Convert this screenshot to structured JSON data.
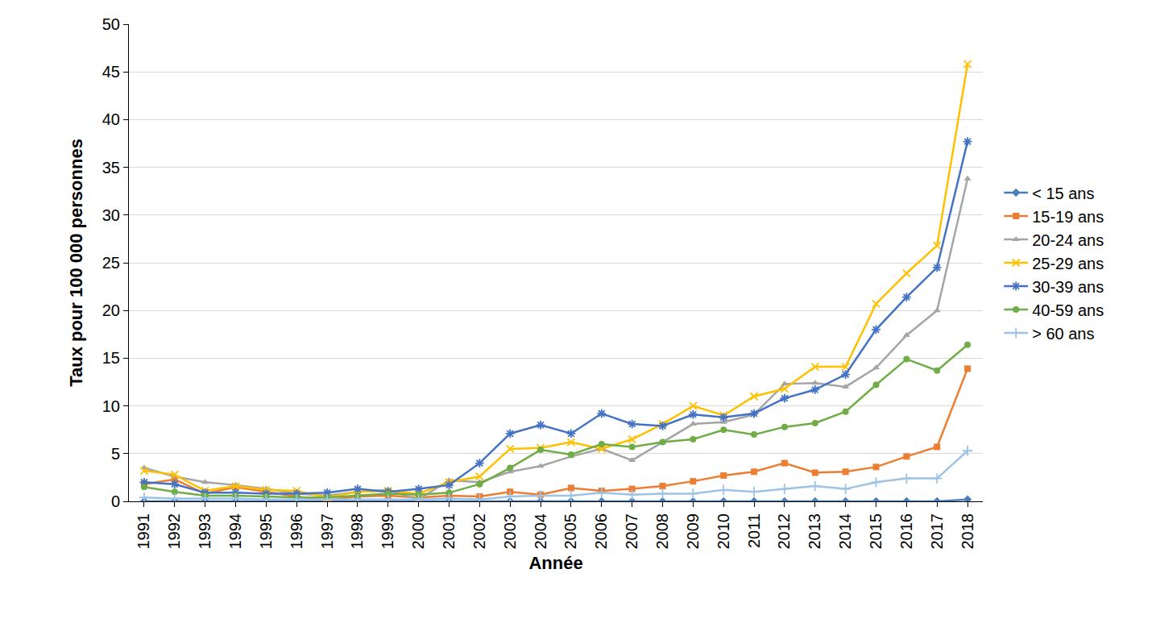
{
  "chart_data": {
    "type": "line",
    "x_label": "Année",
    "y_label": "Taux pour 100 000 personnes",
    "categories": [
      "1991",
      "1992",
      "1993",
      "1994",
      "1995",
      "1996",
      "1997",
      "1998",
      "1999",
      "2000",
      "2001",
      "2002",
      "2003",
      "2004",
      "2005",
      "2006",
      "2007",
      "2008",
      "2009",
      "2010",
      "2011",
      "2012",
      "2013",
      "2014",
      "2015",
      "2016",
      "2017",
      "2018"
    ],
    "series": [
      {
        "name": "< 15 ans",
        "color": "#4a7ebb",
        "marker": "diamond",
        "values": [
          0,
          0,
          0,
          0,
          0,
          0,
          0,
          0,
          0,
          0,
          0,
          0,
          0,
          0,
          0,
          0,
          0,
          0,
          0,
          0,
          0,
          0,
          0,
          0,
          0,
          0,
          0,
          0.2
        ]
      },
      {
        "name": "15-19 ans",
        "color": "#ed7d31",
        "marker": "square",
        "values": [
          1.8,
          2.3,
          0.8,
          1.5,
          1.0,
          0.5,
          0.1,
          0.5,
          0.6,
          0.4,
          0.6,
          0.5,
          1.0,
          0.7,
          1.4,
          1.1,
          1.3,
          1.6,
          2.1,
          2.7,
          3.1,
          4.0,
          3.0,
          3.1,
          3.6,
          4.7,
          5.7,
          13.9
        ]
      },
      {
        "name": "20-24 ans",
        "color": "#a5a5a5",
        "marker": "triangle",
        "values": [
          3.5,
          2.6,
          2.0,
          1.7,
          1.3,
          0.8,
          0.6,
          1.0,
          1.2,
          0.2,
          2.2,
          2.0,
          3.1,
          3.7,
          4.7,
          5.5,
          4.3,
          6.2,
          8.1,
          8.3,
          9.1,
          12.3,
          12.4,
          12.0,
          14.0,
          17.4,
          20.0,
          33.8
        ]
      },
      {
        "name": "25-29 ans",
        "color": "#ffc000",
        "marker": "x",
        "values": [
          3.2,
          2.8,
          1.1,
          1.6,
          1.2,
          1.1,
          0.4,
          1.0,
          1.1,
          0.8,
          2.0,
          2.6,
          5.5,
          5.6,
          6.2,
          5.5,
          6.5,
          8.1,
          10.0,
          9.0,
          11.0,
          11.8,
          14.1,
          14.1,
          20.7,
          23.9,
          26.8,
          45.8
        ]
      },
      {
        "name": "30-39 ans",
        "color": "#4472c4",
        "marker": "asterisk",
        "values": [
          2.0,
          1.8,
          0.9,
          0.9,
          0.8,
          0.8,
          0.9,
          1.3,
          1.0,
          1.3,
          1.7,
          4.0,
          7.1,
          8.0,
          7.1,
          9.2,
          8.1,
          7.9,
          9.1,
          8.8,
          9.2,
          10.8,
          11.7,
          13.3,
          18.0,
          21.4,
          24.5,
          37.7
        ]
      },
      {
        "name": "40-59 ans",
        "color": "#70ad47",
        "marker": "circle",
        "values": [
          1.5,
          1.0,
          0.6,
          0.6,
          0.5,
          0.4,
          0.4,
          0.6,
          0.8,
          0.7,
          0.9,
          1.8,
          3.5,
          5.4,
          4.9,
          6.0,
          5.7,
          6.2,
          6.5,
          7.5,
          7.0,
          7.8,
          8.2,
          9.4,
          12.2,
          14.9,
          13.7,
          16.4
        ]
      },
      {
        "name": "> 60 ans",
        "color": "#9dc3e6",
        "marker": "cross",
        "values": [
          0.4,
          0.3,
          0.3,
          0.3,
          0.2,
          0.2,
          0.2,
          0.2,
          0.2,
          0.2,
          0.3,
          0.2,
          0.5,
          0.6,
          0.6,
          0.9,
          0.7,
          0.8,
          0.8,
          1.2,
          1.0,
          1.3,
          1.6,
          1.3,
          2.0,
          2.4,
          2.4,
          5.3
        ]
      }
    ],
    "ylim": [
      0,
      50
    ],
    "yticks": [
      0,
      5,
      10,
      15,
      20,
      25,
      30,
      35,
      40,
      45,
      50
    ],
    "grid": true,
    "legend": "right"
  }
}
